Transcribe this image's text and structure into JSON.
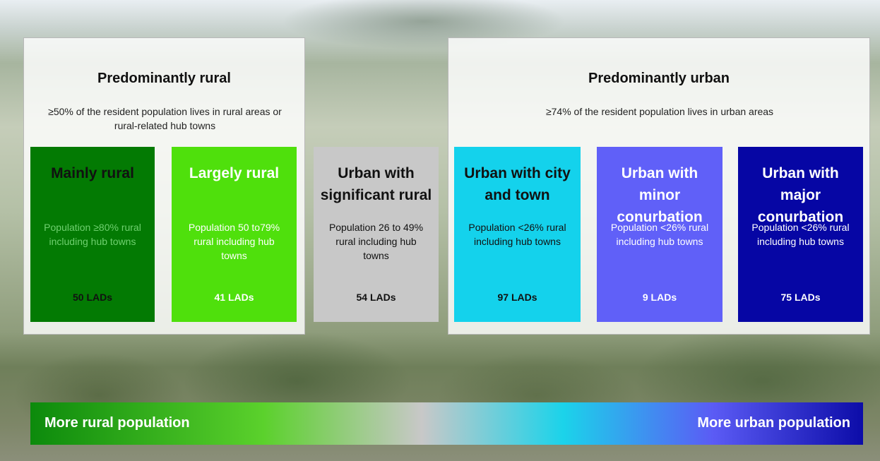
{
  "groups": [
    {
      "title": "Predominantly rural",
      "description": "≥50% of the resident population lives in rural areas or rural-related hub towns"
    },
    {
      "title": "Predominantly urban",
      "description": "≥74% of the resident population lives in urban areas"
    }
  ],
  "categories": [
    {
      "name": "Mainly rural",
      "description": "Population ≥80% rural including hub towns",
      "count": "50 LADs",
      "color": "#037a03",
      "text_color": "#111111",
      "desc_color": "#6fd06f"
    },
    {
      "name": "Largely rural",
      "description": "Population 50 to79% rural including hub towns",
      "count": "41 LADs",
      "color": "#4fe00c",
      "text_color": "#ffffff",
      "desc_color": "#ffffff"
    },
    {
      "name": "Urban with significant rural",
      "description": "Population 26 to 49% rural including hub towns",
      "count": "54 LADs",
      "color": "#c8c8c8",
      "text_color": "#111111",
      "desc_color": "#111111"
    },
    {
      "name": "Urban with city and town",
      "description": "Population <26% rural including hub towns",
      "count": "97 LADs",
      "color": "#14d2ec",
      "text_color": "#111111",
      "desc_color": "#111111"
    },
    {
      "name": "Urban with minor conurbation",
      "description": "Population <26% rural including hub towns",
      "count": "9 LADs",
      "color": "#6060f8",
      "text_color": "#ffffff",
      "desc_color": "#ffffff"
    },
    {
      "name": "Urban with major conurbation",
      "description": "Population <26% rural including hub towns",
      "count": "75 LADs",
      "color": "#0606a4",
      "text_color": "#ffffff",
      "desc_color": "#ffffff"
    }
  ],
  "scale": {
    "left": "More rural population",
    "right": "More urban population"
  }
}
